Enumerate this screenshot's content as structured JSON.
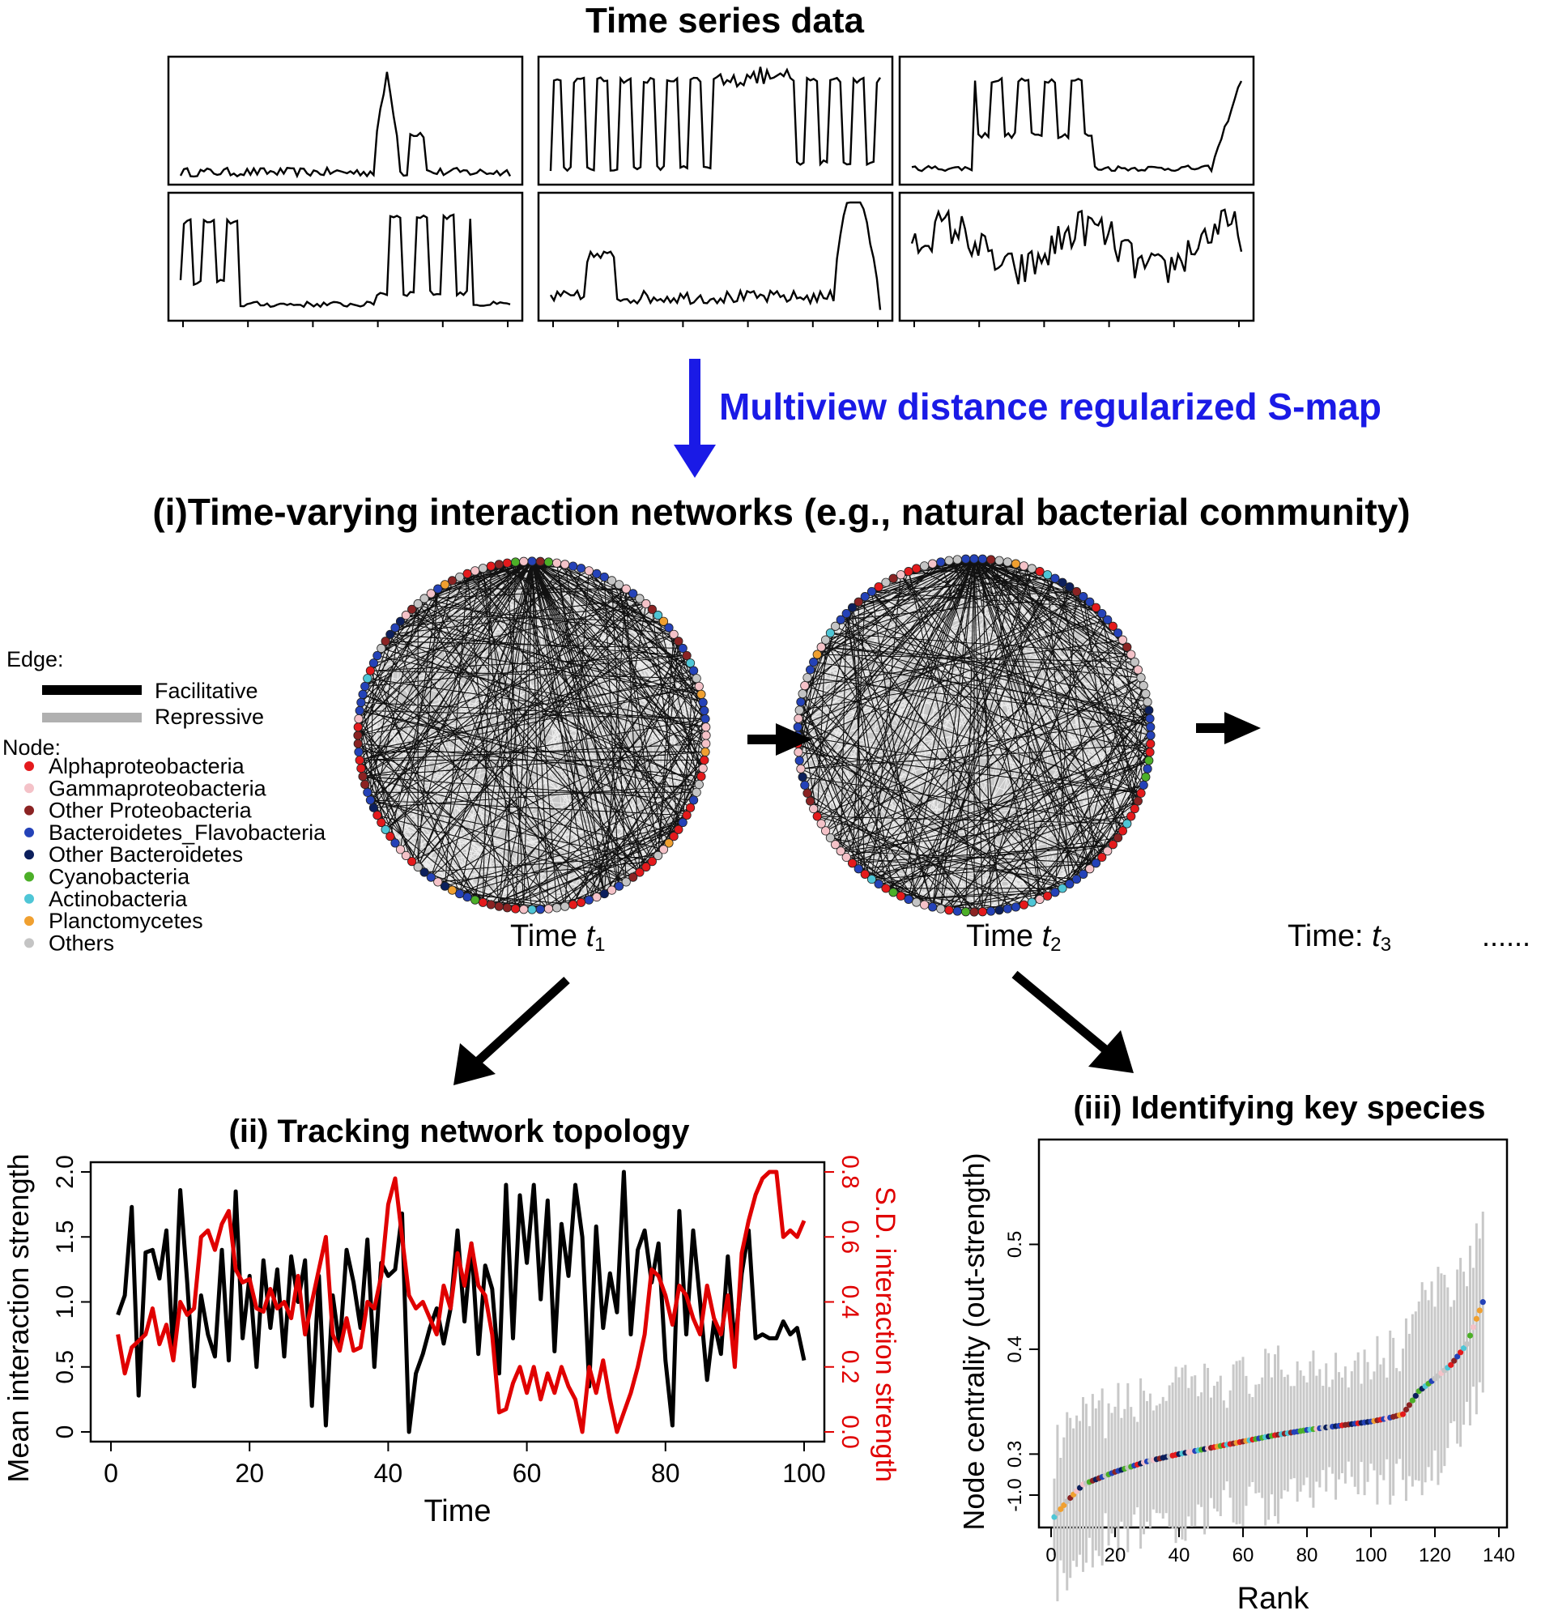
{
  "titles": {
    "top": "Time series data",
    "method": "Multiview distance regularized S-map",
    "networks": "(i)Time-varying interaction networks (e.g., natural bacterial community)",
    "topology": "(ii) Tracking network topology",
    "key_species": "(iii) Identifying key species"
  },
  "legend": {
    "edge_heading": "Edge:",
    "edges": [
      {
        "label": "Facilitative",
        "color": "#000000"
      },
      {
        "label": "Repressive",
        "color": "#b0b0b0"
      }
    ],
    "node_heading": "Node:",
    "nodes": [
      {
        "label": "Alphaproteobacteria",
        "color": "#e41a1c"
      },
      {
        "label": "Gammaproteobacteria",
        "color": "#f4c2c8"
      },
      {
        "label": "Other Proteobacteria",
        "color": "#8b2323"
      },
      {
        "label": "Bacteroidetes_Flavobacteria",
        "color": "#2442b8"
      },
      {
        "label": "Other Bacteroidetes",
        "color": "#0c1f5c"
      },
      {
        "label": "Cyanobacteria",
        "color": "#4caf28"
      },
      {
        "label": "Actinobacteria",
        "color": "#4fc6d6"
      },
      {
        "label": "Planctomycetes",
        "color": "#f0a030"
      },
      {
        "label": "Others",
        "color": "#c4c4c4"
      }
    ]
  },
  "time_labels": {
    "t1_prefix": "Time ",
    "t1_var": "t",
    "t1_sub": "1",
    "t2_prefix": "Time ",
    "t2_var": "t",
    "t2_sub": "2",
    "t3_prefix": "Time: ",
    "t3_var": "t",
    "t3_sub": "3",
    "ellipsis": "......"
  },
  "chart_data": [
    {
      "type": "line",
      "title": "(ii) Tracking network topology",
      "xlabel": "Time",
      "ylabel": "Mean interaction strength",
      "ylabel_right": "S.D. interaction strength",
      "xlim": [
        0,
        100
      ],
      "ylim": [
        0,
        2.0
      ],
      "ylim_right": [
        0,
        0.8
      ],
      "x_ticks": [
        "0",
        "20",
        "40",
        "60",
        "80",
        "100"
      ],
      "y_ticks": [
        "0",
        "0.5",
        "1.0",
        "1.5",
        "2.0"
      ],
      "y_ticks_right": [
        "0.0",
        "0.2",
        "0.4",
        "0.6",
        "0.8"
      ],
      "series": [
        {
          "name": "Mean interaction strength",
          "axis": "left",
          "color": "#000000",
          "x": [
            1,
            2,
            3,
            4,
            5,
            6,
            7,
            8,
            9,
            10,
            11,
            12,
            13,
            14,
            15,
            16,
            17,
            18,
            19,
            20,
            21,
            22,
            23,
            24,
            25,
            26,
            27,
            28,
            29,
            30,
            31,
            32,
            33,
            34,
            35,
            36,
            37,
            38,
            39,
            40,
            41,
            42,
            43,
            44,
            45,
            46,
            47,
            48,
            49,
            50,
            51,
            52,
            53,
            54,
            55,
            56,
            57,
            58,
            59,
            60,
            61,
            62,
            63,
            64,
            65,
            66,
            67,
            68,
            69,
            70,
            71,
            72,
            73,
            74,
            75,
            76,
            77,
            78,
            79,
            80,
            81,
            82,
            83,
            84,
            85,
            86,
            87,
            88,
            89,
            90,
            91,
            92,
            93,
            94,
            95,
            96,
            97,
            98,
            99,
            100
          ],
          "values": [
            0.9,
            1.05,
            1.73,
            0.28,
            1.38,
            1.4,
            1.18,
            1.55,
            0.6,
            1.86,
            1.15,
            0.35,
            1.05,
            0.75,
            0.58,
            1.4,
            0.55,
            1.85,
            0.72,
            1.2,
            0.5,
            1.32,
            0.8,
            1.25,
            0.58,
            1.35,
            1.0,
            1.32,
            0.2,
            1.2,
            0.05,
            1.05,
            0.65,
            1.4,
            1.15,
            0.8,
            1.48,
            0.5,
            1.3,
            1.2,
            1.25,
            1.68,
            0.0,
            0.45,
            0.6,
            0.8,
            0.95,
            0.68,
            0.95,
            1.55,
            0.85,
            1.45,
            0.6,
            1.28,
            1.1,
            0.45,
            1.9,
            0.72,
            1.82,
            1.3,
            1.9,
            1.02,
            1.78,
            0.62,
            1.6,
            1.2,
            1.9,
            1.5,
            0.35,
            1.58,
            0.8,
            1.22,
            0.92,
            2.0,
            0.75,
            1.4,
            1.55,
            1.15,
            1.45,
            0.55,
            0.05,
            1.7,
            0.75,
            1.55,
            1.0,
            0.4,
            0.85,
            0.6,
            1.35,
            0.65,
            1.22,
            1.55,
            0.72,
            0.75,
            0.72,
            0.72,
            0.85,
            0.75,
            0.8,
            0.55
          ]
        },
        {
          "name": "S.D. interaction strength",
          "axis": "right",
          "color": "#e00000",
          "x": [
            1,
            2,
            3,
            4,
            5,
            6,
            7,
            8,
            9,
            10,
            11,
            12,
            13,
            14,
            15,
            16,
            17,
            18,
            19,
            20,
            21,
            22,
            23,
            24,
            25,
            26,
            27,
            28,
            29,
            30,
            31,
            32,
            33,
            34,
            35,
            36,
            37,
            38,
            39,
            40,
            41,
            42,
            43,
            44,
            45,
            46,
            47,
            48,
            49,
            50,
            51,
            52,
            53,
            54,
            55,
            56,
            57,
            58,
            59,
            60,
            61,
            62,
            63,
            64,
            65,
            66,
            67,
            68,
            69,
            70,
            71,
            72,
            73,
            74,
            75,
            76,
            77,
            78,
            79,
            80,
            81,
            82,
            83,
            84,
            85,
            86,
            87,
            88,
            89,
            90,
            91,
            92,
            93,
            94,
            95,
            96,
            97,
            98,
            99,
            100
          ],
          "values": [
            0.3,
            0.18,
            0.26,
            0.28,
            0.3,
            0.38,
            0.27,
            0.33,
            0.22,
            0.4,
            0.36,
            0.38,
            0.6,
            0.62,
            0.56,
            0.64,
            0.68,
            0.5,
            0.46,
            0.47,
            0.38,
            0.37,
            0.44,
            0.38,
            0.4,
            0.35,
            0.48,
            0.3,
            0.4,
            0.5,
            0.6,
            0.3,
            0.25,
            0.35,
            0.25,
            0.26,
            0.4,
            0.38,
            0.48,
            0.7,
            0.78,
            0.6,
            0.42,
            0.38,
            0.4,
            0.35,
            0.3,
            0.45,
            0.38,
            0.55,
            0.45,
            0.58,
            0.45,
            0.42,
            0.3,
            0.06,
            0.07,
            0.15,
            0.2,
            0.12,
            0.2,
            0.1,
            0.18,
            0.12,
            0.2,
            0.14,
            0.1,
            0.0,
            0.2,
            0.12,
            0.22,
            0.1,
            0.0,
            0.06,
            0.12,
            0.2,
            0.3,
            0.5,
            0.48,
            0.42,
            0.33,
            0.45,
            0.42,
            0.35,
            0.3,
            0.45,
            0.35,
            0.3,
            0.42,
            0.2,
            0.55,
            0.65,
            0.73,
            0.78,
            0.8,
            0.8,
            0.6,
            0.62,
            0.6,
            0.65
          ]
        }
      ]
    },
    {
      "type": "scatter",
      "title": "(iii) Identifying key species",
      "xlabel": "Rank",
      "ylabel": "Node centrality (out-strength)",
      "xlim": [
        0,
        140
      ],
      "ylim": [
        0.23,
        0.6
      ],
      "x_ticks": [
        "0",
        "20",
        "40",
        "60",
        "80",
        "100",
        "120",
        "140"
      ],
      "y_ticks": [
        "0.3",
        "0.4",
        "0.5"
      ],
      "y_ticks_lowest": "-1.0",
      "error_bar_color": "#c8c8c8",
      "rank_curve": {
        "x": [
          1,
          5,
          10,
          20,
          30,
          40,
          50,
          60,
          70,
          80,
          90,
          100,
          105,
          110,
          115,
          120,
          125,
          130,
          135
        ],
        "y": [
          0.24,
          0.255,
          0.271,
          0.283,
          0.293,
          0.3,
          0.306,
          0.312,
          0.318,
          0.323,
          0.327,
          0.331,
          0.334,
          0.338,
          0.36,
          0.372,
          0.385,
          0.405,
          0.445
        ]
      }
    }
  ]
}
